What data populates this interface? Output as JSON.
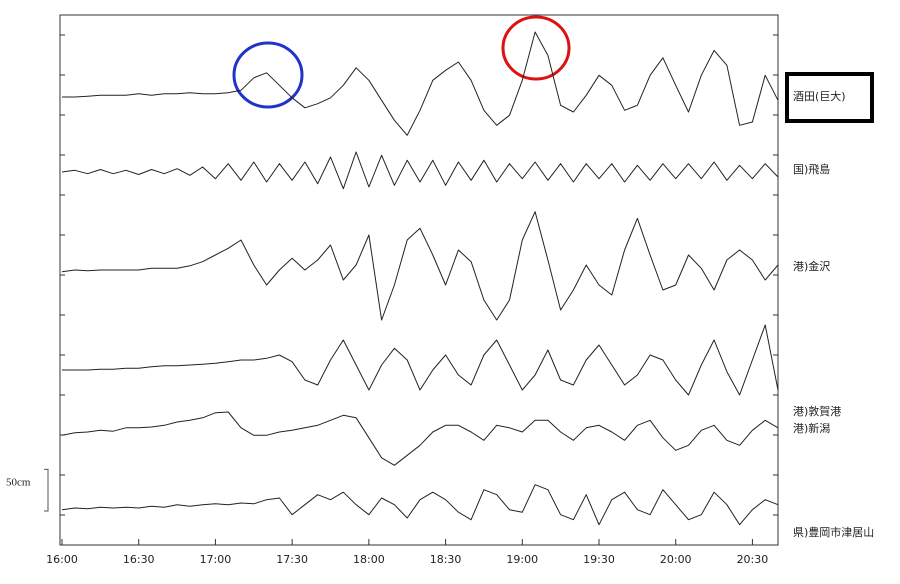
{
  "chart_data": {
    "type": "line",
    "x": [
      "16:00",
      "16:05",
      "16:10",
      "16:15",
      "16:20",
      "16:25",
      "16:30",
      "16:35",
      "16:40",
      "16:45",
      "16:50",
      "16:55",
      "17:00",
      "17:05",
      "17:10",
      "17:15",
      "17:20",
      "17:25",
      "17:30",
      "17:35",
      "17:40",
      "17:45",
      "17:50",
      "17:55",
      "18:00",
      "18:05",
      "18:10",
      "18:15",
      "18:20",
      "18:25",
      "18:30",
      "18:35",
      "18:40",
      "18:45",
      "18:50",
      "18:55",
      "19:00",
      "19:05",
      "19:10",
      "19:15",
      "19:20",
      "19:25",
      "19:30",
      "19:35",
      "19:40",
      "19:45",
      "19:50",
      "19:55",
      "20:00",
      "20:05",
      "20:10",
      "20:15",
      "20:20",
      "20:25",
      "20:30",
      "20:35",
      "20:40"
    ],
    "xlim": [
      "16:00",
      "20:40"
    ],
    "xticks": [
      "16:00",
      "16:30",
      "17:00",
      "17:30",
      "18:00",
      "18:30",
      "19:00",
      "19:30",
      "20:00",
      "20:30"
    ],
    "scale_bar": {
      "value": 50,
      "label": "50cm"
    },
    "series": [
      {
        "name": "酒田(巨大)",
        "color": "#222222",
        "values": [
          0,
          0,
          1,
          2,
          2,
          2,
          4,
          2,
          4,
          4,
          5,
          4,
          4,
          5,
          8,
          23,
          29,
          14,
          -1,
          -13,
          -8,
          -1,
          14,
          35,
          20,
          -4,
          -28,
          -46,
          -16,
          20,
          32,
          42,
          20,
          -16,
          -34,
          -22,
          20,
          78,
          50,
          -10,
          -18,
          2,
          26,
          14,
          -16,
          -10,
          26,
          47,
          14,
          -18,
          26,
          56,
          38,
          -34,
          -30,
          26,
          -4
        ]
      },
      {
        "name": "国)飛島",
        "color": "#222222",
        "values": [
          0,
          2,
          -2,
          3,
          -2,
          2,
          -3,
          3,
          -2,
          4,
          -4,
          6,
          -8,
          10,
          -10,
          12,
          -12,
          10,
          -10,
          12,
          -14,
          18,
          -20,
          24,
          -18,
          20,
          -16,
          14,
          -12,
          14,
          -16,
          12,
          -10,
          14,
          -12,
          10,
          -8,
          12,
          -10,
          10,
          -12,
          10,
          -8,
          10,
          -12,
          8,
          -10,
          10,
          -8,
          10,
          -8,
          12,
          -10,
          8,
          -8,
          10,
          -6
        ]
      },
      {
        "name": "港)金沢",
        "color": "#222222",
        "values": [
          -2,
          0,
          -1,
          0,
          0,
          0,
          0,
          2,
          2,
          2,
          5,
          10,
          18,
          26,
          36,
          6,
          -18,
          0,
          14,
          0,
          12,
          30,
          -12,
          6,
          42,
          -60,
          -18,
          36,
          50,
          18,
          -18,
          24,
          10,
          -36,
          -60,
          -36,
          36,
          70,
          12,
          -48,
          -24,
          6,
          -18,
          -30,
          24,
          62,
          18,
          -24,
          -18,
          18,
          2,
          -24,
          12,
          24,
          12,
          -12,
          6
        ]
      },
      {
        "name": "港)敦賀港",
        "color": "#222222",
        "values": [
          0,
          0,
          0,
          1,
          1,
          2,
          2,
          4,
          5,
          5,
          6,
          7,
          8,
          10,
          12,
          12,
          14,
          18,
          10,
          -12,
          -18,
          12,
          36,
          6,
          -24,
          6,
          26,
          12,
          -24,
          0,
          18,
          -6,
          -18,
          18,
          36,
          6,
          -24,
          -6,
          24,
          -12,
          -18,
          12,
          30,
          6,
          -18,
          -6,
          18,
          12,
          -12,
          -30,
          6,
          36,
          -2,
          -30,
          12,
          54,
          -24
        ]
      },
      {
        "name": "港)新潟",
        "color": "#222222",
        "values": [
          -4,
          -1,
          0,
          2,
          1,
          5,
          5,
          6,
          8,
          12,
          14,
          17,
          23,
          24,
          5,
          -4,
          -4,
          0,
          2,
          5,
          8,
          14,
          20,
          17,
          -7,
          -31,
          -40,
          -28,
          -16,
          0,
          8,
          8,
          0,
          -10,
          8,
          5,
          0,
          14,
          14,
          0,
          -10,
          5,
          8,
          0,
          -10,
          8,
          14,
          -7,
          -22,
          -16,
          2,
          8,
          -10,
          -16,
          2,
          14,
          5
        ]
      },
      {
        "name": "県)豊岡市津居山",
        "color": "#222222",
        "values": [
          -2,
          0,
          -1,
          1,
          0,
          1,
          0,
          2,
          1,
          4,
          2,
          4,
          5,
          4,
          6,
          5,
          10,
          12,
          -8,
          4,
          16,
          10,
          19,
          4,
          -8,
          12,
          4,
          -12,
          10,
          19,
          10,
          -5,
          -14,
          22,
          16,
          -2,
          -5,
          28,
          22,
          -8,
          -14,
          16,
          -20,
          10,
          19,
          -2,
          -8,
          22,
          4,
          -14,
          -8,
          19,
          4,
          -20,
          -2,
          10,
          4
        ]
      }
    ]
  }
}
